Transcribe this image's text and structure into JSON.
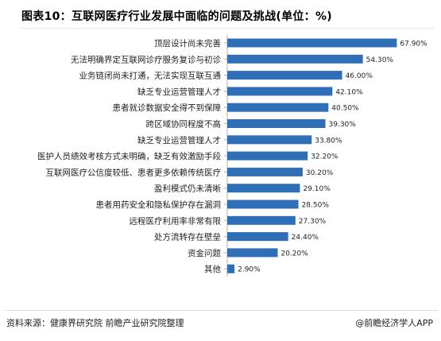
{
  "title": "图表10：互联网医疗行业发展中面临的问题及挑战(单位：%)",
  "source": "资料来源：健康界研究院 前瞻产业研究院整理",
  "brand": "@前瞻经济学人APP",
  "colors": {
    "bar": "#2f6fb7",
    "axis": "#b0b0b0"
  },
  "chart_data": {
    "type": "bar",
    "orientation": "horizontal",
    "title": "图表10：互联网医疗行业发展中面临的问题及挑战(单位：%)",
    "xlabel": "",
    "ylabel": "",
    "xlim": [
      0,
      70
    ],
    "grid": false,
    "categories": [
      "顶层设计尚未完善",
      "无法明确界定互联网诊疗服务复诊与初诊",
      "业务链闭尚未打通，无法实现互联互通",
      "缺乏专业运营管理人才",
      "患者就诊数据安全得不到保障",
      "跨区域协同程度不高",
      "缺乏专业运营管理人才",
      "医护人员绩效考核方式未明确，缺乏有效激励手段",
      "互联网医疗公信度较低、患者更多依赖传统医疗",
      "盈利模式仍未清晰",
      "患者用药安全和隐私保护存在漏洞",
      "远程医疗利用率非常有限",
      "处方流转存在壁垒",
      "资金问题",
      "其他"
    ],
    "values": [
      67.9,
      54.3,
      46.0,
      42.1,
      40.5,
      39.3,
      33.8,
      32.2,
      30.2,
      29.1,
      28.5,
      27.3,
      24.4,
      20.2,
      2.9
    ],
    "value_labels": [
      "67.90%",
      "54.30%",
      "46.00%",
      "42.10%",
      "40.50%",
      "39.30%",
      "33.80%",
      "32.20%",
      "30.20%",
      "29.10%",
      "28.50%",
      "27.30%",
      "24.40%",
      "20.20%",
      "2.90%"
    ]
  }
}
